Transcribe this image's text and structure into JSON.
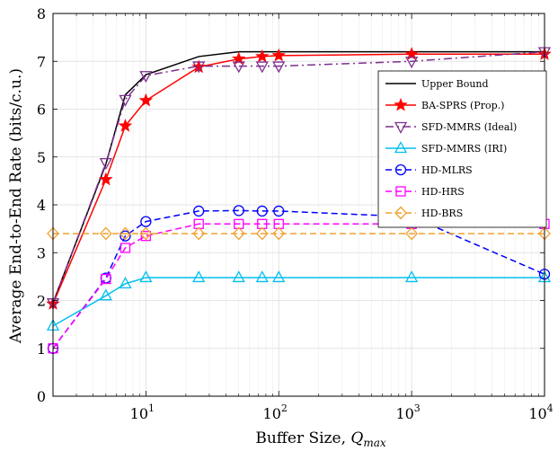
{
  "chart_data": {
    "type": "line",
    "xlabel_text": "Buffer Size, ",
    "xlabel_symbol": "Q",
    "xlabel_sub": "max",
    "ylabel": "Average End-to-End Rate (bits/c.u.)",
    "xscale": "log",
    "xlim": [
      2,
      10000
    ],
    "ylim": [
      0,
      8
    ],
    "x_ticks": [
      {
        "base": "10",
        "exp": "1"
      },
      {
        "base": "10",
        "exp": "2"
      },
      {
        "base": "10",
        "exp": "3"
      },
      {
        "base": "10",
        "exp": "4"
      }
    ],
    "y_ticks": [
      "0",
      "1",
      "2",
      "3",
      "4",
      "5",
      "6",
      "7",
      "8"
    ],
    "grid": true,
    "legend_position": "right",
    "series": [
      {
        "name": "Upper Bound",
        "color": "#000000",
        "dash": "solid",
        "marker": "none",
        "x": [
          2,
          5,
          7,
          10,
          25,
          50,
          75,
          100,
          1000,
          10000
        ],
        "y": [
          1.95,
          4.85,
          6.3,
          6.72,
          7.1,
          7.2,
          7.2,
          7.2,
          7.2,
          7.2
        ]
      },
      {
        "name": "BA-SPRS (Prop.)",
        "color": "#ff0000",
        "dash": "solid",
        "marker": "star",
        "x": [
          2,
          5,
          7,
          10,
          25,
          50,
          75,
          100,
          1000,
          10000
        ],
        "y": [
          1.93,
          4.53,
          5.65,
          6.18,
          6.88,
          7.05,
          7.1,
          7.12,
          7.15,
          7.15
        ]
      },
      {
        "name": "SFD-MMRS (Ideal)",
        "color": "#7e2f8e",
        "dash": "dashdot",
        "marker": "triangle-down",
        "x": [
          2,
          5,
          7,
          10,
          25,
          50,
          75,
          100,
          1000,
          10000
        ],
        "y": [
          1.95,
          4.88,
          6.2,
          6.7,
          6.9,
          6.9,
          6.9,
          6.9,
          7.0,
          7.2
        ]
      },
      {
        "name": "SFD-MMRS (IRI)",
        "color": "#00bfef",
        "dash": "solid",
        "marker": "triangle-up",
        "x": [
          2,
          5,
          7,
          10,
          25,
          50,
          75,
          100,
          1000,
          10000
        ],
        "y": [
          1.47,
          2.1,
          2.35,
          2.48,
          2.48,
          2.48,
          2.48,
          2.48,
          2.48,
          2.48
        ]
      },
      {
        "name": "HD-MLRS",
        "color": "#0000ff",
        "dash": "dashed",
        "marker": "circle",
        "x": [
          2,
          5,
          7,
          10,
          25,
          50,
          75,
          100,
          1000,
          10000
        ],
        "y": [
          1.0,
          2.47,
          3.35,
          3.65,
          3.87,
          3.88,
          3.87,
          3.87,
          3.75,
          2.55
        ]
      },
      {
        "name": "HD-HRS",
        "color": "#ff00ff",
        "dash": "dashed",
        "marker": "square",
        "x": [
          2,
          5,
          7,
          10,
          25,
          50,
          75,
          100,
          1000,
          10000
        ],
        "y": [
          1.0,
          2.45,
          3.1,
          3.35,
          3.6,
          3.6,
          3.6,
          3.6,
          3.6,
          3.6
        ]
      },
      {
        "name": "HD-BRS",
        "color": "#f0a030",
        "dash": "dashed",
        "marker": "diamond",
        "x": [
          2,
          5,
          7,
          10,
          25,
          50,
          75,
          100,
          1000,
          10000
        ],
        "y": [
          3.4,
          3.4,
          3.4,
          3.4,
          3.4,
          3.4,
          3.4,
          3.4,
          3.4,
          3.4
        ]
      }
    ]
  }
}
